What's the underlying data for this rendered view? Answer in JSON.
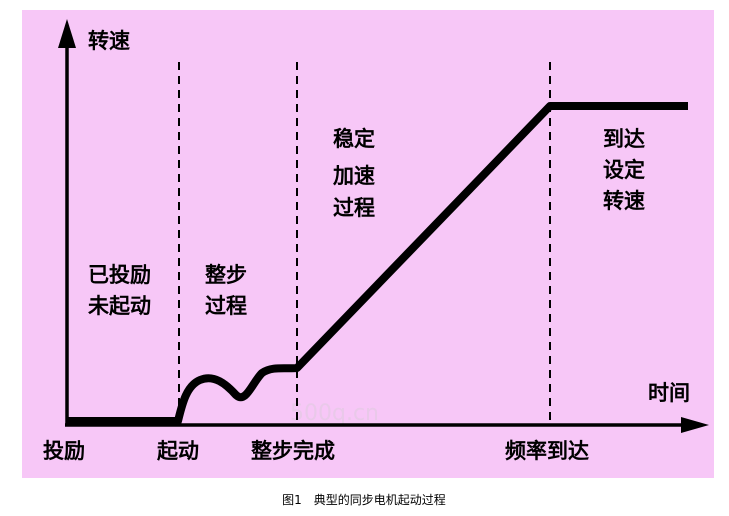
{
  "colors": {
    "panel_background": "#f7c7f7",
    "page_background": "#ffffff",
    "stroke": "#000000",
    "watermark": "#e9c9e9"
  },
  "axes": {
    "y_label": "转速",
    "x_label": "时间"
  },
  "x_markers": [
    "投励",
    "起动",
    "整步完成",
    "频率到达"
  ],
  "phases": {
    "excited_not_started": [
      "已投励",
      "未起动"
    ],
    "synchronizing": [
      "整步",
      "过程"
    ],
    "stable_acceleration": [
      "稳定",
      "加速",
      "过程"
    ],
    "reached_set_speed": [
      "到达",
      "设定",
      "转速"
    ]
  },
  "watermark": "500q.cn",
  "caption": "图1　典型的同步电机起动过程"
}
